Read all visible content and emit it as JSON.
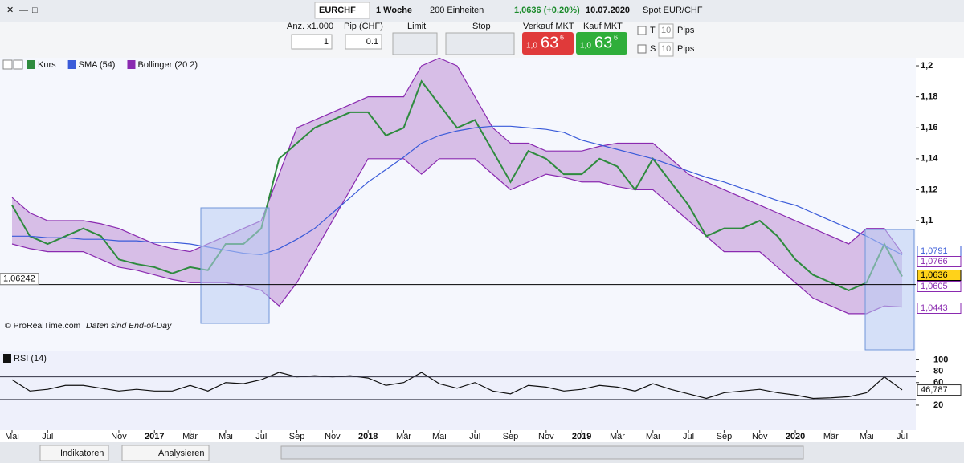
{
  "toolbar": {
    "instrument": "EURCHF",
    "period": "1 Woche",
    "units": "200 Einheiten",
    "change": "1,0636 (+0,20%)",
    "date": "10.07.2020",
    "spot": "Spot EUR/CHF"
  },
  "order": {
    "qty_label": "Anz. x1.000",
    "pip_label": "Pip (CHF)",
    "qty": "1",
    "pip": "0.1",
    "limit": "Limit",
    "stop": "Stop",
    "sell_label": "Verkauf MKT",
    "sell_prefix": "1,0",
    "sell_big": "63",
    "sell_sup": "6",
    "buy_label": "Kauf MKT",
    "buy_prefix": "1,0",
    "buy_big": "63",
    "buy_sup": "6",
    "t": "T",
    "s": "S",
    "t_pips": "10",
    "s_pips": "10",
    "pips": "Pips"
  },
  "chart_data": [
    {
      "type": "line",
      "copyright": "© ProRealTime.com",
      "note": "Daten sind End-of-Day",
      "categories": [
        "Mai",
        null,
        "Jul",
        null,
        null,
        null,
        "Nov",
        null,
        "2017",
        null,
        "Mär",
        null,
        "Mai",
        null,
        "Jul",
        null,
        "Sep",
        null,
        "Nov",
        null,
        "2018",
        null,
        "Mär",
        null,
        "Mai",
        null,
        "Jul",
        null,
        "Sep",
        null,
        "Nov",
        null,
        "2019",
        null,
        "Mär",
        null,
        "Mai",
        null,
        "Jul",
        null,
        "Sep",
        null,
        "Nov",
        null,
        "2020",
        null,
        "Mär",
        null,
        "Mai",
        null,
        "Jul"
      ],
      "series": [
        {
          "name": "Kurs",
          "color": "#2e8b3e",
          "values": [
            1.11,
            1.09,
            1.085,
            1.09,
            1.095,
            1.09,
            1.075,
            1.072,
            1.07,
            1.066,
            1.07,
            1.068,
            1.085,
            1.085,
            1.095,
            1.14,
            1.15,
            1.16,
            1.165,
            1.17,
            1.17,
            1.155,
            1.16,
            1.19,
            1.175,
            1.16,
            1.165,
            1.145,
            1.125,
            1.145,
            1.14,
            1.13,
            1.13,
            1.14,
            1.135,
            1.12,
            1.14,
            1.125,
            1.11,
            1.09,
            1.095,
            1.095,
            1.1,
            1.09,
            1.075,
            1.065,
            1.06,
            1.055,
            1.06,
            1.085,
            1.064
          ]
        },
        {
          "name": "SMA (54)",
          "color": "#3a5bd9",
          "values": [
            1.09,
            1.09,
            1.089,
            1.089,
            1.088,
            1.088,
            1.087,
            1.087,
            1.086,
            1.086,
            1.085,
            1.083,
            1.081,
            1.079,
            1.078,
            1.082,
            1.088,
            1.095,
            1.105,
            1.115,
            1.125,
            1.133,
            1.141,
            1.15,
            1.155,
            1.158,
            1.16,
            1.161,
            1.161,
            1.16,
            1.159,
            1.157,
            1.152,
            1.149,
            1.146,
            1.143,
            1.14,
            1.136,
            1.132,
            1.128,
            1.125,
            1.121,
            1.117,
            1.113,
            1.11,
            1.105,
            1.1,
            1.095,
            1.09,
            1.084,
            1.078
          ]
        },
        {
          "name": "Bollinger (20 2)",
          "color": "#8a2ab0",
          "upper": [
            1.115,
            1.105,
            1.1,
            1.1,
            1.1,
            1.098,
            1.095,
            1.09,
            1.085,
            1.082,
            1.08,
            1.085,
            1.09,
            1.095,
            1.1,
            1.13,
            1.16,
            1.165,
            1.17,
            1.175,
            1.18,
            1.18,
            1.18,
            1.2,
            1.205,
            1.2,
            1.18,
            1.16,
            1.15,
            1.15,
            1.145,
            1.145,
            1.145,
            1.148,
            1.15,
            1.15,
            1.15,
            1.14,
            1.13,
            1.125,
            1.12,
            1.115,
            1.11,
            1.105,
            1.1,
            1.095,
            1.09,
            1.085,
            1.095,
            1.095,
            1.079
          ],
          "lower": [
            1.085,
            1.082,
            1.08,
            1.08,
            1.08,
            1.075,
            1.07,
            1.068,
            1.065,
            1.062,
            1.06,
            1.06,
            1.06,
            1.058,
            1.055,
            1.045,
            1.06,
            1.08,
            1.1,
            1.12,
            1.14,
            1.14,
            1.14,
            1.13,
            1.14,
            1.14,
            1.14,
            1.13,
            1.12,
            1.125,
            1.13,
            1.128,
            1.125,
            1.125,
            1.122,
            1.12,
            1.12,
            1.11,
            1.1,
            1.09,
            1.08,
            1.08,
            1.08,
            1.07,
            1.06,
            1.05,
            1.045,
            1.04,
            1.04,
            1.045,
            1.0443
          ]
        }
      ],
      "ylim": [
        1.0166,
        1.2052
      ],
      "yticks": [
        {
          "value": 1.2,
          "label": "1,2"
        },
        {
          "value": 1.18,
          "label": "1,18"
        },
        {
          "value": 1.16,
          "label": "1,16"
        },
        {
          "value": 1.14,
          "label": "1,14"
        },
        {
          "value": 1.12,
          "label": "1,12"
        },
        {
          "value": 1.1,
          "label": "1,1"
        }
      ],
      "price_markers": [
        {
          "value": 1.0791,
          "label": "1,0791"
        },
        {
          "value": 1.0766,
          "label": "1,0766"
        },
        {
          "value": 1.0636,
          "label": "1,0636"
        },
        {
          "value": 1.0605,
          "label": "1,0605"
        },
        {
          "value": 1.0443,
          "label": "1,0443"
        }
      ],
      "left_marker": {
        "value": 1.06242,
        "label": "1,06242"
      }
    },
    {
      "type": "line",
      "series": [
        {
          "name": "RSI (14)",
          "color": "#111111",
          "values": [
            65,
            45,
            48,
            55,
            55,
            50,
            45,
            48,
            45,
            45,
            55,
            45,
            60,
            58,
            65,
            78,
            70,
            72,
            70,
            72,
            68,
            55,
            60,
            78,
            58,
            50,
            60,
            45,
            40,
            55,
            52,
            45,
            48,
            55,
            52,
            45,
            58,
            48,
            40,
            32,
            42,
            45,
            48,
            42,
            38,
            32,
            33,
            35,
            42,
            70,
            47
          ]
        }
      ],
      "ylim": [
        10,
        105
      ],
      "yticks": [
        100,
        80,
        60,
        20
      ],
      "levels": [
        70,
        30
      ],
      "last": {
        "value": 46.787,
        "label": "46,787"
      }
    }
  ],
  "footer": {
    "indicators": "Indikatoren",
    "analyze": "Analysieren"
  }
}
